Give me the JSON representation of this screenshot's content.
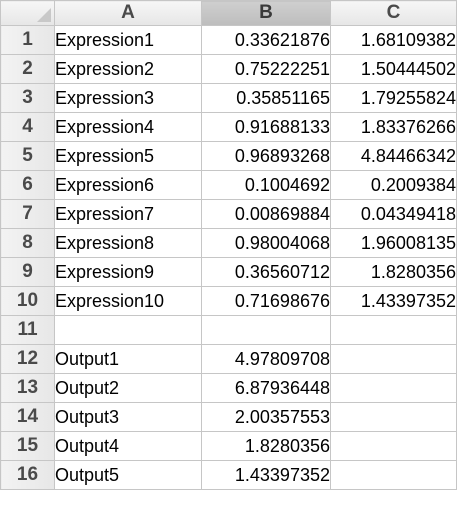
{
  "columns": [
    "A",
    "B",
    "C"
  ],
  "rows": [
    {
      "num": "1",
      "a": "Expression1",
      "b": "0.33621876",
      "c": "1.68109382"
    },
    {
      "num": "2",
      "a": "Expression2",
      "b": "0.75222251",
      "c": "1.50444502"
    },
    {
      "num": "3",
      "a": "Expression3",
      "b": "0.35851165",
      "c": "1.79255824"
    },
    {
      "num": "4",
      "a": "Expression4",
      "b": "0.91688133",
      "c": "1.83376266"
    },
    {
      "num": "5",
      "a": "Expression5",
      "b": "0.96893268",
      "c": "4.84466342"
    },
    {
      "num": "6",
      "a": "Expression6",
      "b": "0.1004692",
      "c": "0.2009384"
    },
    {
      "num": "7",
      "a": "Expression7",
      "b": "0.00869884",
      "c": "0.04349418"
    },
    {
      "num": "8",
      "a": "Expression8",
      "b": "0.98004068",
      "c": "1.96008135"
    },
    {
      "num": "9",
      "a": "Expression9",
      "b": "0.36560712",
      "c": "1.8280356"
    },
    {
      "num": "10",
      "a": "Expression10",
      "b": "0.71698676",
      "c": "1.43397352"
    },
    {
      "num": "11",
      "a": "",
      "b": "",
      "c": ""
    },
    {
      "num": "12",
      "a": "Output1",
      "b": "4.97809708",
      "c": ""
    },
    {
      "num": "13",
      "a": "Output2",
      "b": "6.87936448",
      "c": ""
    },
    {
      "num": "14",
      "a": "Output3",
      "b": "2.00357553",
      "c": ""
    },
    {
      "num": "15",
      "a": "Output4",
      "b": "1.8280356",
      "c": ""
    },
    {
      "num": "16",
      "a": "Output5",
      "b": "1.43397352",
      "c": ""
    }
  ],
  "selected_column": "B",
  "colors": {
    "grid_line": "#c6c6c6",
    "header_bg": "#e6e6e6",
    "selected_header_bg": "#bdbdbd",
    "cell_text": "#000000"
  }
}
